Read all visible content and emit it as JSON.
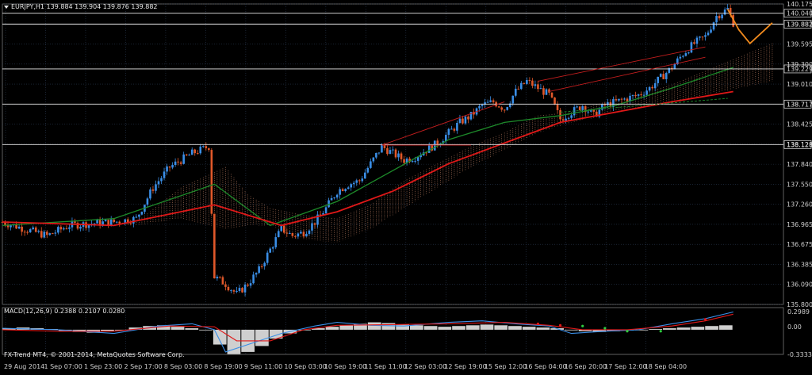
{
  "header": {
    "arrow_icon": "triangle-down-icon",
    "symbol_line": "EURJPY,H1  139.884 139.904 139.876 139.882"
  },
  "indicator": {
    "macd_label": "MACD(12,26,9) 0.2388 0.2107 0.0280",
    "scale_top": "0.2989",
    "scale_zero": "0.00",
    "scale_bottom": "-0.3333"
  },
  "footer": {
    "copyright": "FX-Trend MT4, © 2001-2014, MetaQuotes Software Corp."
  },
  "colors": {
    "background": "#000000",
    "grid": "#2b3a52",
    "bull_candle": "#3a8ee6",
    "bear_candle": "#e0582a",
    "ma_red": "#e01818",
    "ma_green": "#1d8a2a",
    "cloud": "#c9886a",
    "forecast": "#f08a1e",
    "macd_blue": "#3a8ee6",
    "macd_red": "#e01818",
    "macd_hist": "#cfcfcf"
  },
  "chart_data": {
    "type": "candlestick",
    "symbol": "EURJPY",
    "timeframe": "H1",
    "ylim": [
      135.8,
      140.175
    ],
    "y_ticks": [
      "140.175",
      "139.882",
      "139.595",
      "139.300",
      "139.010",
      "138.717",
      "138.425",
      "138.128",
      "137.840",
      "137.550",
      "137.260",
      "136.965",
      "136.675",
      "136.385",
      "136.090",
      "135.800"
    ],
    "x_ticks": [
      "29 Aug 2014",
      "1 Sep 07:00",
      "1 Sep 23:00",
      "2 Sep 17:00",
      "8 Sep 03:00",
      "8 Sep 19:00",
      "9 Sep 11:00",
      "10 Sep 03:00",
      "10 Sep 19:00",
      "11 Sep 11:00",
      "12 Sep 03:00",
      "12 Sep 19:00",
      "15 Sep 12:00",
      "16 Sep 04:00",
      "16 Sep 20:00",
      "17 Sep 12:00",
      "18 Sep 04:00"
    ],
    "horizontal_levels": [
      {
        "label": "140.040",
        "value": 140.04
      },
      {
        "label": "139.882",
        "value": 139.882
      },
      {
        "label": "139.229",
        "value": 139.229
      },
      {
        "label": "138.717",
        "value": 138.717
      },
      {
        "label": "138.128",
        "value": 138.128
      }
    ],
    "close_path": [
      [
        0,
        137.0
      ],
      [
        4,
        136.9
      ],
      [
        8,
        136.8
      ],
      [
        12,
        136.95
      ],
      [
        16,
        136.98
      ],
      [
        20,
        137.0
      ],
      [
        24,
        137.05
      ],
      [
        27,
        137.5
      ],
      [
        30,
        137.8
      ],
      [
        34,
        138.0
      ],
      [
        37,
        138.1
      ],
      [
        38,
        136.2
      ],
      [
        40,
        136.1
      ],
      [
        42,
        135.95
      ],
      [
        44,
        136.1
      ],
      [
        46,
        136.3
      ],
      [
        48,
        136.6
      ],
      [
        50,
        136.9
      ],
      [
        52,
        136.8
      ],
      [
        54,
        136.85
      ],
      [
        56,
        137.0
      ],
      [
        58,
        137.2
      ],
      [
        60,
        137.45
      ],
      [
        62,
        137.55
      ],
      [
        64,
        137.6
      ],
      [
        66,
        137.85
      ],
      [
        68,
        138.1
      ],
      [
        70,
        138.0
      ],
      [
        72,
        137.9
      ],
      [
        74,
        137.95
      ],
      [
        76,
        138.05
      ],
      [
        78,
        138.15
      ],
      [
        80,
        138.3
      ],
      [
        82,
        138.45
      ],
      [
        84,
        138.55
      ],
      [
        86,
        138.7
      ],
      [
        88,
        138.75
      ],
      [
        90,
        138.65
      ],
      [
        92,
        138.9
      ],
      [
        94,
        139.05
      ],
      [
        96,
        138.95
      ],
      [
        98,
        138.85
      ],
      [
        100,
        138.5
      ],
      [
        102,
        138.6
      ],
      [
        104,
        138.7
      ],
      [
        106,
        138.55
      ],
      [
        108,
        138.7
      ],
      [
        110,
        138.75
      ],
      [
        112,
        138.8
      ],
      [
        114,
        138.85
      ],
      [
        116,
        138.95
      ],
      [
        118,
        139.1
      ],
      [
        120,
        139.25
      ],
      [
        122,
        139.45
      ],
      [
        124,
        139.6
      ],
      [
        126,
        139.7
      ],
      [
        128,
        140.0
      ],
      [
        130,
        140.1
      ],
      [
        131,
        139.9
      ]
    ],
    "ma_red": [
      [
        0,
        137.0
      ],
      [
        20,
        136.95
      ],
      [
        38,
        137.25
      ],
      [
        50,
        136.95
      ],
      [
        60,
        137.15
      ],
      [
        70,
        137.45
      ],
      [
        80,
        137.85
      ],
      [
        90,
        138.15
      ],
      [
        100,
        138.45
      ],
      [
        110,
        138.6
      ],
      [
        120,
        138.75
      ],
      [
        131,
        138.9
      ]
    ],
    "ma_green": [
      [
        0,
        136.95
      ],
      [
        20,
        137.05
      ],
      [
        38,
        137.55
      ],
      [
        48,
        136.95
      ],
      [
        60,
        137.3
      ],
      [
        70,
        137.75
      ],
      [
        80,
        138.2
      ],
      [
        90,
        138.45
      ],
      [
        100,
        138.55
      ],
      [
        110,
        138.7
      ],
      [
        120,
        138.95
      ],
      [
        131,
        139.25
      ]
    ],
    "forecast": [
      [
        130,
        140.1
      ],
      [
        132,
        139.8
      ],
      [
        134,
        139.6
      ],
      [
        136,
        139.75
      ],
      [
        138,
        139.9
      ]
    ],
    "cloud_upper": [
      [
        24,
        137.0
      ],
      [
        32,
        137.5
      ],
      [
        40,
        137.8
      ],
      [
        44,
        137.4
      ],
      [
        48,
        137.2
      ],
      [
        54,
        137.1
      ],
      [
        60,
        137.05
      ],
      [
        66,
        137.25
      ],
      [
        72,
        137.6
      ],
      [
        78,
        137.85
      ],
      [
        84,
        138.1
      ],
      [
        90,
        138.3
      ],
      [
        96,
        138.55
      ],
      [
        102,
        138.6
      ],
      [
        108,
        138.75
      ],
      [
        114,
        138.85
      ],
      [
        120,
        139.0
      ],
      [
        126,
        139.2
      ],
      [
        132,
        139.4
      ],
      [
        138,
        139.6
      ]
    ],
    "cloud_lower": [
      [
        24,
        136.95
      ],
      [
        32,
        137.05
      ],
      [
        40,
        136.9
      ],
      [
        44,
        136.95
      ],
      [
        48,
        136.95
      ],
      [
        54,
        136.75
      ],
      [
        60,
        136.7
      ],
      [
        66,
        136.9
      ],
      [
        72,
        137.2
      ],
      [
        78,
        137.5
      ],
      [
        84,
        137.8
      ],
      [
        90,
        138.05
      ],
      [
        96,
        138.3
      ],
      [
        102,
        138.45
      ],
      [
        108,
        138.55
      ],
      [
        114,
        138.65
      ],
      [
        120,
        138.75
      ],
      [
        126,
        138.85
      ],
      [
        132,
        138.95
      ],
      [
        138,
        139.05
      ]
    ],
    "macd_main": [
      [
        0,
        0.02
      ],
      [
        10,
        0.0
      ],
      [
        20,
        -0.05
      ],
      [
        28,
        0.05
      ],
      [
        34,
        0.08
      ],
      [
        38,
        0.0
      ],
      [
        40,
        -0.3
      ],
      [
        44,
        -0.2
      ],
      [
        50,
        -0.05
      ],
      [
        56,
        0.05
      ],
      [
        60,
        0.1
      ],
      [
        66,
        0.06
      ],
      [
        72,
        0.05
      ],
      [
        80,
        0.1
      ],
      [
        86,
        0.12
      ],
      [
        92,
        0.08
      ],
      [
        98,
        0.05
      ],
      [
        102,
        -0.05
      ],
      [
        108,
        -0.02
      ],
      [
        114,
        0.0
      ],
      [
        120,
        0.08
      ],
      [
        126,
        0.15
      ],
      [
        131,
        0.24
      ]
    ],
    "macd_signal": [
      [
        0,
        0.0
      ],
      [
        10,
        -0.02
      ],
      [
        20,
        -0.02
      ],
      [
        30,
        0.05
      ],
      [
        38,
        0.04
      ],
      [
        42,
        -0.15
      ],
      [
        48,
        -0.15
      ],
      [
        54,
        0.0
      ],
      [
        60,
        0.06
      ],
      [
        70,
        0.07
      ],
      [
        80,
        0.08
      ],
      [
        90,
        0.1
      ],
      [
        98,
        0.06
      ],
      [
        104,
        0.0
      ],
      [
        112,
        0.0
      ],
      [
        120,
        0.05
      ],
      [
        126,
        0.12
      ],
      [
        131,
        0.21
      ]
    ],
    "macd_hist": [
      0.02,
      0.03,
      0.02,
      0.01,
      -0.02,
      -0.03,
      -0.04,
      -0.02,
      0.0,
      0.03,
      0.05,
      0.06,
      0.04,
      0.02,
      0.0,
      -0.2,
      -0.33,
      -0.3,
      -0.22,
      -0.12,
      -0.05,
      0.0,
      0.02,
      0.04,
      0.06,
      0.08,
      0.1,
      0.09,
      0.07,
      0.06,
      0.05,
      0.04,
      0.05,
      0.06,
      0.07,
      0.06,
      0.05,
      0.04,
      0.03,
      0.02,
      0.0,
      -0.02,
      -0.03,
      -0.02,
      -0.01,
      0.0,
      0.01,
      0.02,
      0.03,
      0.04,
      0.05,
      0.06
    ]
  }
}
